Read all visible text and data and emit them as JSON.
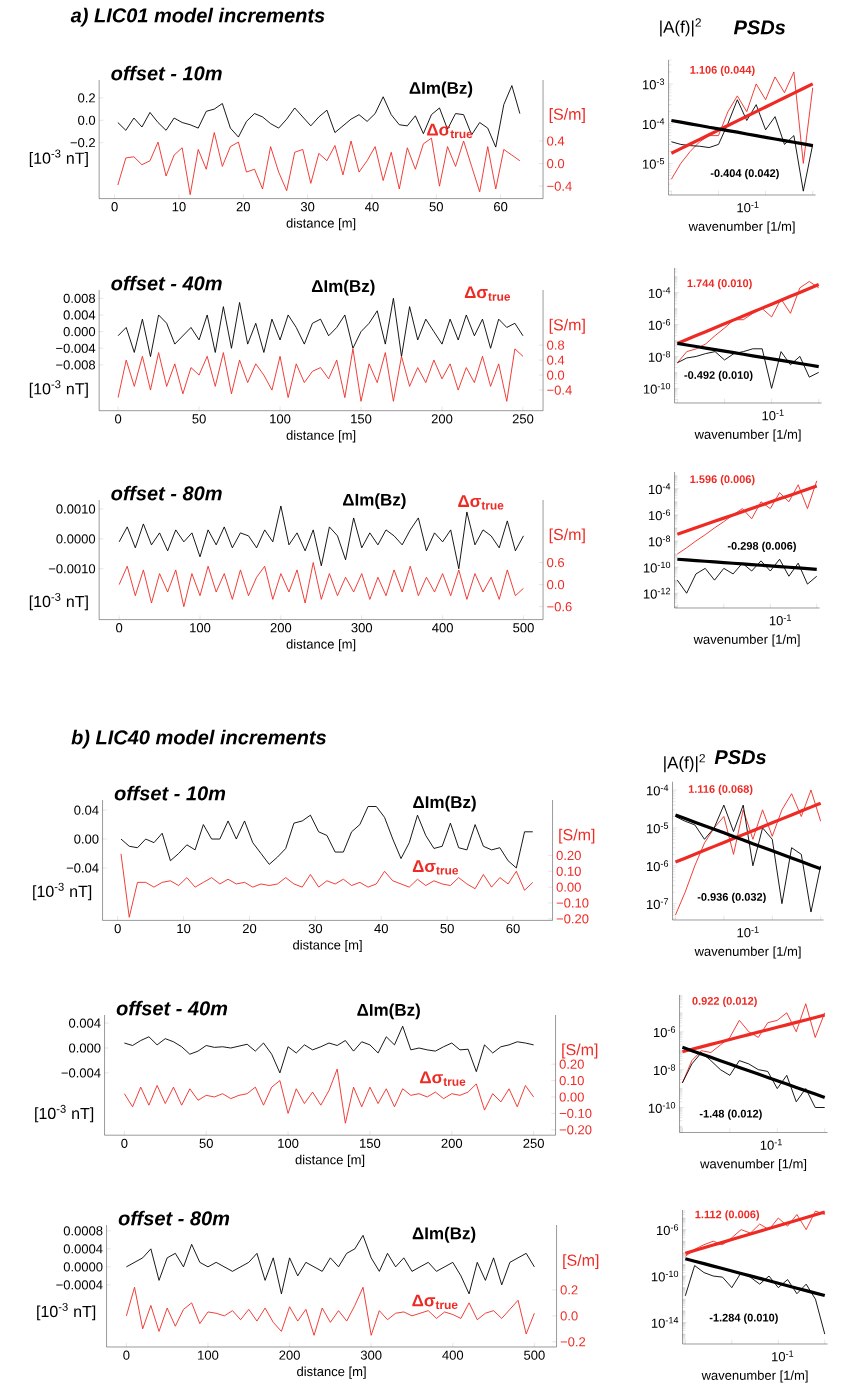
{
  "chart_data": [
    {
      "type": "line",
      "title": "offset - 10m",
      "annotations": [
        "a) LIC01 model increments"
      ],
      "xlabel": "distance [m]",
      "ylabel": "[10$^{-3}$ nT]",
      "y2label": "[S/m]",
      "x": [
        0.5,
        1.75,
        3,
        4.25,
        5.5,
        6.75,
        8,
        9.25,
        10.5,
        11.75,
        13,
        14.25,
        15.5,
        16.75,
        18,
        19.25,
        20.5,
        21.75,
        23,
        24.25,
        25.5,
        26.75,
        28,
        29.25,
        30.5,
        31.75,
        33,
        34.25,
        35.5,
        36.75,
        38,
        39.25,
        40.5,
        41.75,
        43,
        44.25,
        45.5,
        46.75,
        48,
        49.25,
        50.5,
        51.75,
        53,
        54.25,
        55.5,
        56.75,
        58,
        59.25,
        60.5,
        61.75,
        63
      ],
      "xlim": [
        -2.4,
        66.6
      ],
      "xticks": [
        0,
        10,
        20,
        30,
        40,
        50,
        60
      ],
      "ylim": [
        -0.7,
        0.36
      ],
      "yticks": [
        {
          "value": 0.2,
          "label": "0.2"
        },
        {
          "value": 0,
          "label": "0.0"
        },
        {
          "value": -0.2,
          "label": "−0.2"
        }
      ],
      "y2lim": [
        -0.62,
        1.48
      ],
      "y2ticks": [
        {
          "value": 0.4,
          "label": "0.4"
        },
        {
          "value": 0,
          "label": "0.0"
        },
        {
          "value": -0.4,
          "label": "−0.4"
        }
      ],
      "series": [
        {
          "name": "ΔIm(Bz)",
          "color": "#000000",
          "values": [
            -0.02,
            -0.09,
            0.02,
            -0.06,
            0.07,
            -0.02,
            -0.09,
            0.02,
            -0.02,
            -0.04,
            -0.07,
            0.08,
            0.1,
            0.15,
            -0.07,
            -0.15,
            -0.01,
            0.06,
            0.03,
            -0.03,
            -0.07,
            0.01,
            0.11,
            0.03,
            -0.05,
            0.03,
            0.09,
            -0.11,
            -0.05,
            0.01,
            0.05,
            -0.01,
            0.06,
            0.21,
            0.05,
            -0.04,
            -0.05,
            0.04,
            -0.12,
            0.05,
            0.11,
            -0.08,
            0.06,
            0.05,
            -0.13,
            -0.02,
            -0.07,
            -0.24,
            0.14,
            0.31,
            0.06
          ]
        },
        {
          "name": "Δσ$_{true}$",
          "color": "#ee2a24",
          "axis": "y2",
          "values": [
            -0.38,
            0.1,
            0.12,
            -0.02,
            0.05,
            0.38,
            -0.22,
            0.15,
            0.28,
            -0.55,
            0.25,
            -0.1,
            0.55,
            -0.05,
            0.3,
            0.38,
            -0.15,
            -0.1,
            -0.45,
            0.3,
            -0.15,
            -0.48,
            0.2,
            0.25,
            -0.35,
            0.18,
            0.05,
            0.32,
            -0.2,
            0.4,
            -0.15,
            0.05,
            0.3,
            -0.3,
            0.2,
            -0.45,
            0.28,
            -0.1,
            0.35,
            0.45,
            -0.4,
            0.3,
            -0.05,
            0.4,
            -0.05,
            -0.5,
            0.3,
            -0.45,
            0.25,
            0.15,
            0.05
          ]
        }
      ]
    },
    {
      "type": "line",
      "log": "y",
      "title": "PSDs",
      "ylabel": "|A(f)|$^{2}$",
      "xlabel": "wavenumber [1/m]",
      "annotations": [
        "10$^{-1}$"
      ],
      "categories": [
        null,
        null,
        null,
        null,
        null,
        null,
        null,
        null,
        null,
        null,
        null,
        null,
        null,
        null,
        null,
        null
      ],
      "ylim": [
        1.6e-06,
        0.004
      ],
      "yticks": [
        {
          "value": 0.001,
          "label": "10$^{-3}$"
        },
        {
          "value": 0.0001,
          "label": "10$^{-4}$"
        },
        {
          "value": 1e-05,
          "label": "10$^{-5}$"
        }
      ],
      "series": [
        {
          "color": "#ee2a24",
          "values": [
            4e-06,
            1e-05,
            2e-05,
            3.5e-05,
            5e-05,
            5e-05,
            0.0002,
            0.0005,
            0.0002,
            0.001,
            0.0004,
            0.0015,
            0.0006,
            0.002,
            1e-05,
            0.0008
          ]
        },
        {
          "color": "#000000",
          "values": [
            3.5e-05,
            3e-05,
            2.8e-05,
            2.7e-05,
            2.5e-05,
            3e-05,
            0.0001,
            0.0004,
            0.00012,
            0.0003,
            7e-05,
            0.00015,
            3e-05,
            5e-05,
            2e-06,
            3e-05
          ]
        },
        {
          "name": "1.106 (0.044)",
          "color": "#ee2a24",
          "values": [
            1.8e-05,
            2.35e-05,
            3.08e-05,
            4.02e-05,
            5.25e-05,
            6.87e-05,
            8.97e-05,
            0.000117,
            0.000153,
            0.0002,
            0.000262,
            0.000343,
            0.000448,
            0.000585,
            0.000766,
            0.001
          ]
        },
        {
          "name": "-0.404 (0.042)",
          "color": "#000000",
          "values": [
            0.00012,
            0.000109,
            9.9e-05,
            9e-05,
            8.1e-05,
            7.4e-05,
            6.7e-05,
            6.1e-05,
            5.5e-05,
            5e-05,
            4.5e-05,
            4.1e-05,
            3.75e-05,
            3.4e-05,
            3.1e-05,
            2.8e-05
          ]
        }
      ]
    },
    {
      "type": "line",
      "title": "offset - 40m",
      "xlabel": "distance [m]",
      "ylabel": "[10$^{-3}$ nT]",
      "y2label": "[S/m]",
      "x": [
        0,
        5,
        10,
        15,
        20,
        25,
        30,
        35,
        40,
        45,
        50,
        55,
        60,
        65,
        70,
        75,
        80,
        85,
        90,
        95,
        100,
        105,
        110,
        115,
        120,
        125,
        130,
        135,
        140,
        145,
        150,
        155,
        160,
        165,
        170,
        175,
        180,
        185,
        190,
        195,
        200,
        205,
        210,
        215,
        220,
        225,
        230,
        235,
        240,
        245,
        250
      ],
      "xlim": [
        -11.7,
        262.4
      ],
      "xticks": [
        0,
        50,
        100,
        150,
        200,
        250
      ],
      "ylim": [
        -0.019,
        0.01
      ],
      "yticks": [
        {
          "value": 0.008,
          "label": "0.008"
        },
        {
          "value": 0.004,
          "label": "0.004"
        },
        {
          "value": 0,
          "label": "0.000"
        },
        {
          "value": -0.004,
          "label": "−0.004"
        },
        {
          "value": -0.008,
          "label": "−0.008"
        }
      ],
      "y2lim": [
        -0.95,
        2.27
      ],
      "y2ticks": [
        {
          "value": 0.8,
          "label": "0.8"
        },
        {
          "value": 0.4,
          "label": "0.4"
        },
        {
          "value": 0,
          "label": "0.0"
        },
        {
          "value": -0.4,
          "label": "−0.4"
        }
      ],
      "series": [
        {
          "name": "ΔIm(Bz)",
          "color": "#000000",
          "values": [
            -0.001,
            0.001,
            -0.005,
            0.003,
            -0.006,
            0.004,
            0.002,
            -0.003,
            -0.001,
            0.001,
            -0.002,
            0.004,
            -0.005,
            0.006,
            -0.004,
            0.007,
            -0.003,
            0.002,
            -0.005,
            0.003,
            -0.002,
            0.004,
            0.001,
            -0.003,
            0.002,
            0.003,
            -0.001,
            0.001,
            0.004,
            -0.004,
            0.0,
            0.002,
            0.005,
            -0.003,
            0.008,
            -0.006,
            0.006,
            -0.002,
            0.003,
            0.0,
            -0.003,
            0.003,
            -0.002,
            0.004,
            -0.001,
            0.003,
            -0.004,
            0.003,
            0.001,
            0.002,
            -0.001
          ]
        },
        {
          "name": "Δσ$_{true}$",
          "color": "#ee2a24",
          "axis": "y2",
          "values": [
            -0.6,
            0.4,
            -0.3,
            0.5,
            -0.4,
            0.6,
            -0.3,
            0.3,
            -0.5,
            0.2,
            0.0,
            0.5,
            -0.3,
            0.6,
            -0.5,
            0.4,
            -0.2,
            0.3,
            0.0,
            -0.4,
            0.5,
            -0.6,
            0.3,
            -0.2,
            0.1,
            0.2,
            -0.1,
            0.4,
            -0.6,
            0.7,
            -0.7,
            0.3,
            -0.2,
            0.6,
            -0.7,
            0.5,
            -0.3,
            0.2,
            -0.2,
            0.4,
            -0.1,
            0.3,
            -0.4,
            0.2,
            -0.2,
            0.5,
            -0.3,
            0.3,
            -0.7,
            0.7,
            0.5
          ]
        }
      ]
    },
    {
      "type": "line",
      "log": "y",
      "xlabel": "wavenumber [1/m]",
      "annotations": [
        "10$^{-1}$"
      ],
      "categories": [
        null,
        null,
        null,
        null,
        null,
        null,
        null,
        null,
        null,
        null,
        null,
        null,
        null,
        null,
        null,
        null
      ],
      "ylim": [
        1.2e-11,
        0.0035
      ],
      "yticks": [
        {
          "value": 0.0001,
          "label": "10$^{-4}$"
        },
        {
          "value": 1e-06,
          "label": "10$^{-6}$"
        },
        {
          "value": 1e-08,
          "label": "10$^{-8}$"
        },
        {
          "value": 1e-10,
          "label": "10$^{-10}$"
        }
      ],
      "series": [
        {
          "color": "#ee2a24",
          "values": [
            4e-09,
            2e-08,
            3e-08,
            6e-08,
            2e-07,
            6e-07,
            2e-06,
            2e-06,
            5e-06,
            1e-05,
            3e-06,
            4e-05,
            5e-06,
            0.0002,
            0.0005,
            0.0002
          ]
        },
        {
          "color": "#000000",
          "values": [
            4e-09,
            8e-09,
            1e-08,
            1.5e-08,
            2e-08,
            6e-09,
            1.5e-08,
            2e-08,
            3e-08,
            3e-08,
            1e-10,
            2e-08,
            3e-09,
            1e-08,
            5e-10,
            1e-09
          ]
        },
        {
          "name": "1.744 (0.010)",
          "color": "#ee2a24",
          "values": [
            6.5e-08,
            1.15e-07,
            2.02e-07,
            3.56e-07,
            6.27e-07,
            1.11e-06,
            1.95e-06,
            3.44e-06,
            6.05e-06,
            1.07e-05,
            1.88e-05,
            3.31e-05,
            5.85e-05,
            0.000103,
            0.000182,
            0.00032
          ]
        },
        {
          "name": "-0.492 (0.010)",
          "color": "#000000",
          "values": [
            6.5e-08,
            5.2e-08,
            4.17e-08,
            3.33e-08,
            2.67e-08,
            2.13e-08,
            1.71e-08,
            1.37e-08,
            1.09e-08,
            8.75e-09,
            7e-09,
            5.6e-09,
            4.5e-09,
            3.6e-09,
            2.9e-09,
            2.3e-09
          ]
        }
      ]
    },
    {
      "type": "line",
      "title": "offset - 80m",
      "xlabel": "distance [m]",
      "ylabel": "[10$^{-3}$ nT]",
      "y2label": "[S/m]",
      "x": [
        0,
        10,
        20,
        30,
        40,
        50,
        60,
        70,
        80,
        90,
        100,
        110,
        120,
        130,
        140,
        150,
        160,
        170,
        180,
        190,
        200,
        210,
        220,
        230,
        240,
        250,
        260,
        270,
        280,
        290,
        300,
        310,
        320,
        330,
        340,
        350,
        360,
        370,
        380,
        390,
        400,
        410,
        420,
        430,
        440,
        450,
        460,
        470,
        480,
        490,
        500
      ],
      "xlim": [
        -24.7,
        524.2
      ],
      "xticks": [
        0,
        100,
        200,
        300,
        400,
        500
      ],
      "ylim": [
        -0.0027,
        0.0013
      ],
      "yticks": [
        {
          "value": 0.001,
          "label": "0.0010"
        },
        {
          "value": 0,
          "label": "0.0000"
        },
        {
          "value": -0.001,
          "label": "−0.0010"
        }
      ],
      "y2lim": [
        -0.95,
        2.3
      ],
      "y2ticks": [
        {
          "value": 0.6,
          "label": "0.6"
        },
        {
          "value": 0,
          "label": "0.0"
        },
        {
          "value": -0.6,
          "label": "−0.6"
        }
      ],
      "series": [
        {
          "name": "ΔIm(Bz)",
          "color": "#000000",
          "values": [
            -0.0001,
            0.0004,
            -0.0003,
            0.0005,
            -0.0002,
            0.0002,
            -0.0004,
            0.0003,
            -0.0001,
            0.0002,
            -0.0006,
            0.0003,
            -0.0002,
            0.0004,
            -0.0003,
            0.0002,
            0.0001,
            -0.0003,
            0.0003,
            -0.0001,
            0.0011,
            -0.0002,
            0.0002,
            -0.0004,
            0.0003,
            -0.0009,
            0.0004,
            0.0001,
            -0.0007,
            0.0007,
            -0.0003,
            0.0002,
            -0.0002,
            0.0003,
            0.0001,
            -0.0002,
            0.0003,
            0.0007,
            -0.0004,
            0.0002,
            -0.0001,
            0.0003,
            -0.001,
            0.0009,
            -0.0002,
            0.0003,
            0.0001,
            -0.0003,
            0.0006,
            -0.0004,
            0.0001
          ]
        },
        {
          "name": "Δσ$_{true}$",
          "color": "#ee2a24",
          "axis": "y2",
          "values": [
            0.0,
            0.5,
            -0.3,
            0.4,
            -0.5,
            0.3,
            -0.2,
            0.4,
            -0.6,
            0.3,
            -0.3,
            0.5,
            -0.2,
            0.3,
            -0.4,
            0.4,
            -0.3,
            0.2,
            0.5,
            -0.4,
            0.3,
            -0.2,
            0.4,
            -0.5,
            0.6,
            -0.4,
            0.3,
            -0.3,
            0.2,
            -0.2,
            0.3,
            -0.4,
            0.2,
            -0.3,
            0.4,
            -0.2,
            0.5,
            -0.3,
            0.2,
            -0.2,
            0.3,
            -0.3,
            0.4,
            -0.4,
            0.3,
            -0.2,
            0.2,
            -0.4,
            0.4,
            -0.3,
            -0.1
          ]
        }
      ]
    },
    {
      "type": "line",
      "log": "y",
      "xlabel": "wavenumber [1/m]",
      "annotations": [
        "10$^{-1}$"
      ],
      "categories": [
        null,
        null,
        null,
        null,
        null,
        null,
        null,
        null,
        null,
        null,
        null,
        null,
        null,
        null,
        null,
        null
      ],
      "ylim": [
        7.4e-14,
        0.0019
      ],
      "yticks": [
        {
          "value": 0.0001,
          "label": "10$^{-4}$"
        },
        {
          "value": 1e-06,
          "label": "10$^{-6}$"
        },
        {
          "value": 1e-08,
          "label": "10$^{-8}$"
        },
        {
          "value": 1e-10,
          "label": "10$^{-10}$"
        },
        {
          "value": 1e-12,
          "label": "10$^{-12}$"
        }
      ],
      "series": [
        {
          "color": "#ee2a24",
          "values": [
            1e-09,
            3e-09,
            1e-08,
            3e-08,
            1e-07,
            3e-07,
            1e-06,
            3e-06,
            5e-07,
            1e-05,
            3e-06,
            5e-05,
            1e-05,
            0.0002,
            3e-06,
            0.0004
          ]
        },
        {
          "color": "#000000",
          "values": [
            1e-11,
            1e-12,
            3e-11,
            8e-11,
            1e-11,
            8e-11,
            3e-11,
            2e-10,
            5e-11,
            3e-10,
            5e-11,
            4e-10,
            2e-11,
            2e-10,
            5e-12,
            2e-11
          ]
        },
        {
          "name": "1.596 (0.006)",
          "color": "#ee2a24",
          "values": [
            3.3e-08,
            5.8e-08,
            1.03e-07,
            1.81e-07,
            3.18e-07,
            5.6e-07,
            9.9e-07,
            1.73e-06,
            3.05e-06,
            5.37e-06,
            9.46e-06,
            1.67e-05,
            2.93e-05,
            5.16e-05,
            9.08e-05,
            0.00016
          ]
        },
        {
          "name": "-0.298 (0.006)",
          "color": "#000000",
          "values": [
            4e-10,
            3.56e-10,
            3.16e-10,
            2.81e-10,
            2.49e-10,
            2.22e-10,
            1.97e-10,
            1.75e-10,
            1.56e-10,
            1.38e-10,
            1.23e-10,
            1.09e-10,
            9.7e-11,
            8.6e-11,
            7.7e-11,
            6.8e-11
          ]
        }
      ]
    },
    {
      "type": "line",
      "title": "offset - 10m",
      "annotations": [
        "b) LIC40 model increments"
      ],
      "xlabel": "distance [m]",
      "ylabel": "[10$^{-3}$ nT]",
      "y2label": "[S/m]",
      "x": [
        0.5,
        1.75,
        3,
        4.25,
        5.5,
        6.75,
        8,
        9.25,
        10.5,
        11.75,
        13,
        14.25,
        15.5,
        16.75,
        18,
        19.25,
        20.5,
        21.75,
        23,
        24.25,
        25.5,
        26.75,
        28,
        29.25,
        30.5,
        31.75,
        33,
        34.25,
        35.5,
        36.75,
        38,
        39.25,
        40.5,
        41.75,
        43,
        44.25,
        45.5,
        46.75,
        48,
        49.25,
        50.5,
        51.75,
        53,
        54.25,
        55.5,
        56.75,
        58,
        59.25,
        60.5,
        61.75,
        63
      ],
      "xlim": [
        -2.3,
        66.0
      ],
      "xticks": [
        0,
        10,
        20,
        30,
        40,
        50,
        60
      ],
      "ylim": [
        -0.1125,
        0.054
      ],
      "yticks": [
        {
          "value": 0.04,
          "label": "0.04"
        },
        {
          "value": 0,
          "label": "0.00"
        },
        {
          "value": -0.04,
          "label": "−0.04"
        }
      ],
      "y2lim": [
        -0.21,
        0.55
      ],
      "y2ticks": [
        {
          "value": 0.2,
          "label": "0.20"
        },
        {
          "value": 0.1,
          "label": "0.10"
        },
        {
          "value": 0,
          "label": "0.00"
        },
        {
          "value": -0.1,
          "label": "−0.10"
        },
        {
          "value": -0.2,
          "label": "−0.20"
        }
      ],
      "series": [
        {
          "name": "ΔIm(Bz)",
          "color": "#000000",
          "values": [
            0.0,
            -0.01,
            -0.012,
            0.0,
            -0.005,
            0.008,
            -0.03,
            -0.02,
            -0.008,
            -0.015,
            0.02,
            0.0,
            0.0,
            0.025,
            0.0,
            0.025,
            -0.005,
            -0.02,
            -0.035,
            -0.025,
            -0.013,
            0.022,
            0.025,
            0.033,
            0.01,
            0.005,
            -0.018,
            -0.018,
            0.01,
            0.02,
            0.045,
            0.045,
            0.03,
            0.0,
            -0.027,
            -0.005,
            0.033,
            0.005,
            -0.013,
            -0.01,
            0.022,
            -0.012,
            -0.015,
            0.02,
            -0.01,
            -0.015,
            -0.012,
            -0.03,
            -0.04,
            0.01,
            0.01
          ]
        },
        {
          "name": "Δσ$_{true}$",
          "color": "#ee2a24",
          "axis": "y2",
          "values": [
            0.21,
            -0.19,
            0.03,
            0.03,
            0.0,
            0.03,
            0.04,
            0.01,
            0.06,
            0.0,
            0.03,
            0.06,
            0.02,
            0.05,
            0.02,
            0.03,
            0.0,
            0.02,
            0.01,
            0.02,
            0.06,
            0.02,
            0.0,
            0.08,
            0.0,
            0.04,
            0.02,
            0.05,
            0.01,
            0.03,
            0.0,
            0.02,
            0.1,
            0.04,
            0.02,
            0.0,
            0.05,
            0.01,
            0.04,
            0.02,
            0.01,
            0.06,
            0.02,
            -0.01,
            0.08,
            0.0,
            0.06,
            0.02,
            0.1,
            -0.02,
            0.03
          ]
        }
      ]
    },
    {
      "type": "line",
      "log": "y",
      "title": "PSDs",
      "ylabel": "|A(f)|$^{2}$",
      "xlabel": "wavenumber [1/m]",
      "annotations": [
        "10$^{-1}$"
      ],
      "categories": [
        null,
        null,
        null,
        null,
        null,
        null,
        null,
        null,
        null,
        null,
        null,
        null,
        null,
        null,
        null,
        null
      ],
      "ylim": [
        3.7e-08,
        0.000166
      ],
      "yticks": [
        {
          "value": 0.0001,
          "label": "10$^{-4}$"
        },
        {
          "value": 1e-05,
          "label": "10$^{-5}$"
        },
        {
          "value": 1e-06,
          "label": "10$^{-6}$"
        },
        {
          "value": 1e-07,
          "label": "10$^{-7}$"
        }
      ],
      "series": [
        {
          "color": "#ee2a24",
          "values": [
            5e-08,
            2e-07,
            1e-06,
            4e-06,
            1e-05,
            2e-05,
            2e-06,
            3e-05,
            5e-06,
            3e-05,
            6e-06,
            3e-05,
            8e-05,
            2e-05,
            0.0001,
            1.5e-05
          ]
        },
        {
          "color": "#000000",
          "values": [
            2e-05,
            1.5e-05,
            1.2e-05,
            5e-06,
            1e-05,
            4e-05,
            8e-06,
            4e-05,
            1e-06,
            1e-05,
            5e-06,
            1e-07,
            3e-06,
            2e-06,
            6e-08,
            1e-06
          ]
        },
        {
          "name": "1.116 (0.068)",
          "color": "#ee2a24",
          "values": [
            1.25e-06,
            1.59e-06,
            2.01e-06,
            2.56e-06,
            3.25e-06,
            4.12e-06,
            5.24e-06,
            6.65e-06,
            8.45e-06,
            1.07e-05,
            1.36e-05,
            1.73e-05,
            2.2e-05,
            2.79e-05,
            3.54e-05,
            4.5e-05
          ]
        },
        {
          "name": "-0.936 (0.032)",
          "color": "#000000",
          "values": [
            2.2e-05,
            1.77e-05,
            1.42e-05,
            1.14e-05,
            9.2e-06,
            7.4e-06,
            5.9e-06,
            4.8e-06,
            3.8e-06,
            3.1e-06,
            2.5e-06,
            2e-06,
            1.6e-06,
            1.29e-06,
            1.03e-06,
            8.3e-07
          ]
        }
      ]
    },
    {
      "type": "line",
      "title": "offset - 40m",
      "xlabel": "distance [m]",
      "ylabel": "[10$^{-3}$ nT]",
      "y2label": "[S/m]",
      "x": [
        0,
        5,
        10,
        15,
        20,
        25,
        30,
        35,
        40,
        45,
        50,
        55,
        60,
        65,
        70,
        75,
        80,
        85,
        90,
        95,
        100,
        105,
        110,
        115,
        120,
        125,
        130,
        135,
        140,
        145,
        150,
        155,
        160,
        165,
        170,
        175,
        180,
        185,
        190,
        195,
        200,
        205,
        210,
        215,
        220,
        225,
        230,
        235,
        240,
        245,
        250
      ],
      "xlim": [
        -12.1,
        263.4
      ],
      "xticks": [
        0,
        50,
        100,
        150,
        200,
        250
      ],
      "ylim": [
        -0.014,
        0.0053
      ],
      "yticks": [
        {
          "value": 0.004,
          "label": "0.004"
        },
        {
          "value": 0,
          "label": "0.000"
        },
        {
          "value": -0.004,
          "label": "−0.004"
        }
      ],
      "y2lim": [
        -0.233,
        0.5
      ],
      "y2ticks": [
        {
          "value": 0.2,
          "label": "0.20"
        },
        {
          "value": 0.1,
          "label": "0.10"
        },
        {
          "value": 0,
          "label": "0.00"
        },
        {
          "value": -0.1,
          "label": "−0.10"
        },
        {
          "value": -0.2,
          "label": "−0.20"
        }
      ],
      "series": [
        {
          "name": "ΔIm(Bz)",
          "color": "#000000",
          "values": [
            0.0008,
            0.0004,
            0.0012,
            0.0018,
            0.0005,
            0.0015,
            0.001,
            0.0002,
            -0.001,
            -0.0005,
            0.0004,
            0.0001,
            0.0002,
            0.0,
            0.0003,
            0.0006,
            -0.0005,
            0.0008,
            -0.001,
            -0.004,
            0.0002,
            -0.0008,
            0.0005,
            -0.0003,
            0.0002,
            0.0008,
            0.0004,
            0.0012,
            -0.0005,
            0.001,
            0.0005,
            -0.0008,
            0.0018,
            0.0005,
            0.0035,
            -0.0003,
            0.0,
            -0.0003,
            -0.0005,
            0.0002,
            0.0008,
            -0.0003,
            -0.0002,
            -0.0038,
            0.0005,
            -0.0008,
            0.0002,
            0.0005,
            0.001,
            0.0008,
            0.0005
          ]
        },
        {
          "name": "Δσ$_{true}$",
          "color": "#ee2a24",
          "axis": "y2",
          "values": [
            0.02,
            -0.06,
            0.06,
            -0.05,
            0.07,
            -0.04,
            0.06,
            -0.05,
            0.05,
            -0.02,
            0.01,
            0.0,
            0.02,
            -0.01,
            0.01,
            0.02,
            0.06,
            -0.05,
            0.06,
            0.1,
            -0.1,
            0.05,
            -0.04,
            0.03,
            -0.05,
            0.04,
            0.17,
            -0.16,
            0.06,
            -0.06,
            0.06,
            -0.04,
            0.05,
            -0.06,
            0.05,
            0.01,
            0.02,
            0.0,
            0.03,
            -0.01,
            0.02,
            0.01,
            0.03,
            0.08,
            -0.08,
            0.02,
            -0.03,
            0.05,
            -0.06,
            0.07,
            0.0
          ]
        }
      ]
    },
    {
      "type": "line",
      "log": "y",
      "xlabel": "wavenumber [1/m]",
      "annotations": [
        "10$^{-1}$"
      ],
      "categories": [
        null,
        null,
        null,
        null,
        null,
        null,
        null,
        null,
        null,
        null,
        null,
        null,
        null,
        null,
        null,
        null
      ],
      "ylim": [
        4.8e-12,
        8.7e-05
      ],
      "yticks": [
        {
          "value": 1e-06,
          "label": "10$^{-6}$"
        },
        {
          "value": 1e-08,
          "label": "10$^{-8}$"
        },
        {
          "value": 1e-10,
          "label": "10$^{-10}$"
        }
      ],
      "series": [
        {
          "color": "#ee2a24",
          "values": [
            2e-09,
            3e-08,
            1e-07,
            8e-08,
            2e-07,
            5e-07,
            4e-06,
            1e-06,
            5e-07,
            3e-06,
            4e-06,
            1e-05,
            1e-06,
            3e-05,
            5e-07,
            1e-05
          ]
        },
        {
          "color": "#000000",
          "values": [
            2e-09,
            2e-08,
            8e-08,
            3e-08,
            1e-08,
            5e-09,
            3e-08,
            2e-08,
            1e-08,
            8e-09,
            1e-09,
            5e-09,
            2e-10,
            1e-09,
            1e-10,
            1e-10
          ]
        },
        {
          "name": "0.922 (0.012)",
          "color": "#ee2a24",
          "values": [
            8.8e-08,
            1.18e-07,
            1.59e-07,
            2.14e-07,
            2.88e-07,
            3.89e-07,
            5.24e-07,
            7.05e-07,
            9.5e-07,
            1.28e-06,
            1.72e-06,
            2.31e-06,
            3.11e-06,
            4.2e-06,
            5.65e-06,
            7.6e-06
          ]
        },
        {
          "name": "-1.48 (0.012)",
          "color": "#000000",
          "values": [
            1.5e-07,
            1e-07,
            6.65e-08,
            4.44e-08,
            2.96e-08,
            1.97e-08,
            1.31e-08,
            8.75e-09,
            5.83e-09,
            3.88e-09,
            2.59e-09,
            1.73e-09,
            1.15e-09,
            7.66e-10,
            5.1e-10,
            3.4e-10
          ]
        }
      ]
    },
    {
      "type": "line",
      "title": "offset - 80m",
      "xlabel": "distance [m]",
      "ylabel": "[10$^{-3}$ nT]",
      "y2label": "[S/m]",
      "x": [
        0,
        10,
        20,
        30,
        40,
        50,
        60,
        70,
        80,
        90,
        100,
        110,
        120,
        130,
        140,
        150,
        160,
        170,
        180,
        190,
        200,
        210,
        220,
        230,
        240,
        250,
        260,
        270,
        280,
        290,
        300,
        310,
        320,
        330,
        340,
        350,
        360,
        370,
        380,
        390,
        400,
        410,
        420,
        430,
        440,
        450,
        460,
        470,
        480,
        490,
        500
      ],
      "xlim": [
        -24.3,
        527.2
      ],
      "xticks": [
        0,
        100,
        200,
        300,
        400,
        500
      ],
      "ylim": [
        -0.00178,
        0.00093
      ],
      "yticks": [
        {
          "value": 0.0008,
          "label": "0.0008"
        },
        {
          "value": 0.0004,
          "label": "0.0004"
        },
        {
          "value": 0,
          "label": "0.0000"
        },
        {
          "value": -0.0004,
          "label": "−0.0004"
        }
      ],
      "y2lim": [
        -0.24,
        0.7
      ],
      "y2ticks": [
        {
          "value": 0.2,
          "label": "0.2"
        },
        {
          "value": 0,
          "label": "0.0"
        },
        {
          "value": -0.2,
          "label": "−0.2"
        }
      ],
      "series": [
        {
          "name": "ΔIm(Bz)",
          "color": "#000000",
          "values": [
            0.0,
            0.0001,
            0.0002,
            0.0004,
            -0.0003,
            0.0002,
            0.0003,
            0.0,
            0.0005,
            0.0001,
            0.0,
            0.0001,
            0.0,
            -0.0001,
            0.0,
            0.0001,
            0.0003,
            -0.0003,
            0.0002,
            -0.0006,
            0.0002,
            -0.0002,
            0.0001,
            0.0,
            -0.0001,
            0.0002,
            0.0,
            0.0003,
            0.0004,
            0.0007,
            0.0002,
            -0.0001,
            0.0003,
            0.0,
            0.0002,
            -0.0001,
            0.0,
            0.0001,
            -0.0001,
            0.0,
            0.0001,
            -0.0002,
            -0.0006,
            0.0001,
            -0.0003,
            0.0002,
            -0.0004,
            0.0001,
            0.0002,
            0.0003,
            0.0
          ]
        },
        {
          "name": "Δσ$_{true}$",
          "color": "#ee2a24",
          "axis": "y2",
          "values": [
            0.0,
            0.22,
            -0.1,
            0.08,
            -0.12,
            0.06,
            -0.08,
            0.05,
            0.1,
            -0.06,
            0.03,
            0.02,
            0.0,
            0.04,
            -0.03,
            0.05,
            -0.04,
            0.06,
            -0.05,
            -0.12,
            0.07,
            -0.04,
            0.05,
            -0.15,
            0.06,
            -0.05,
            0.04,
            -0.04,
            0.08,
            0.22,
            -0.15,
            0.04,
            -0.03,
            0.02,
            0.03,
            0.0,
            0.02,
            0.04,
            -0.02,
            0.03,
            0.01,
            -0.02,
            0.1,
            -0.03,
            0.02,
            0.04,
            -0.02,
            0.05,
            0.12,
            -0.14,
            0.02
          ]
        }
      ]
    },
    {
      "type": "line",
      "log": "y",
      "xlabel": "wavenumber [1/m]",
      "annotations": [
        "10$^{-1}$"
      ],
      "categories": [
        null,
        null,
        null,
        null,
        null,
        null,
        null,
        null,
        null,
        null,
        null,
        null,
        null,
        null,
        null,
        null
      ],
      "ylim": [
        1.4e-16,
        4.9e-05
      ],
      "yticks": [
        {
          "value": 1e-06,
          "label": "10$^{-6}$"
        },
        {
          "value": 1e-10,
          "label": "10$^{-10}$"
        },
        {
          "value": 1e-14,
          "label": "10$^{-14}$"
        }
      ],
      "series": [
        {
          "color": "#ee2a24",
          "values": [
            5e-09,
            2e-08,
            5e-08,
            1e-07,
            5e-08,
            2e-07,
            1e-06,
            5e-07,
            3e-06,
            1e-06,
            1e-05,
            2e-06,
            2e-05,
            1e-06,
            4e-05,
            2e-05
          ]
        },
        {
          "color": "#000000",
          "values": [
            2e-12,
            8e-10,
            2e-10,
            1e-10,
            8e-11,
            1e-11,
            2e-10,
            8e-11,
            2e-11,
            1e-10,
            1e-11,
            5e-11,
            3e-12,
            2e-11,
            1e-12,
            1e-15
          ]
        },
        {
          "name": "1.112 (0.006)",
          "color": "#ee2a24",
          "values": [
            9e-09,
            1.56e-08,
            2.69e-08,
            4.65e-08,
            8e-08,
            1.39e-07,
            2.4e-07,
            4.15e-07,
            7.18e-07,
            1.24e-06,
            2.14e-06,
            3.71e-06,
            6.4e-06,
            1.11e-05,
            1.91e-05,
            3.3e-05
          ]
        },
        {
          "name": "-1.284 (0.010)",
          "color": "#000000",
          "values": [
            3.1e-09,
            1.9e-09,
            1.17e-09,
            7.2e-10,
            4.4e-10,
            2.72e-10,
            1.67e-10,
            1.03e-10,
            6.3e-11,
            3.9e-11,
            2.4e-11,
            1.47e-11,
            9e-12,
            5.5e-12,
            3.4e-12,
            2.1e-12
          ]
        }
      ]
    }
  ]
}
